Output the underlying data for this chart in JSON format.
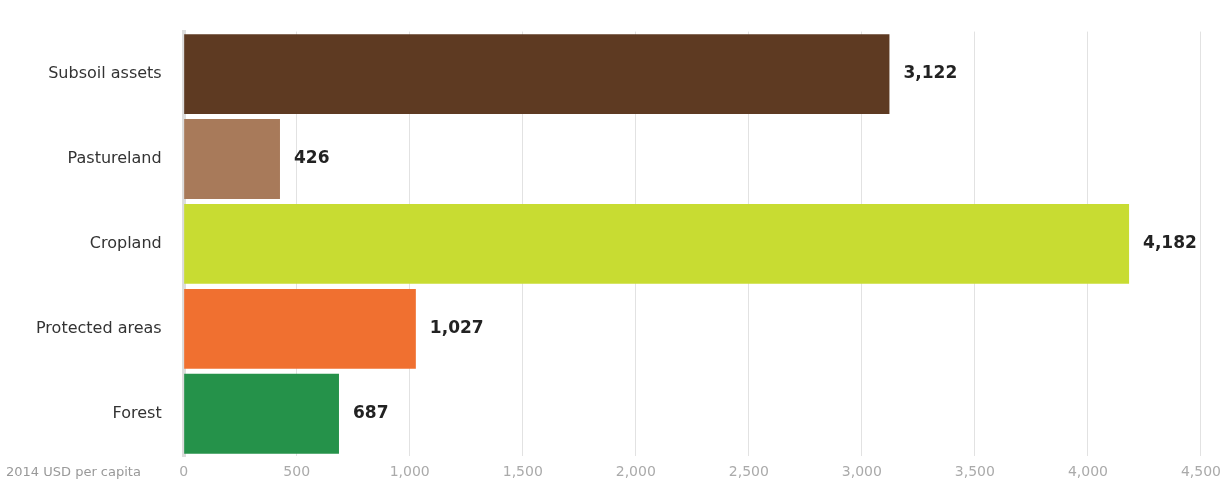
{
  "chart_data": {
    "type": "bar",
    "orientation": "horizontal",
    "xlabel": "2014 USD per capita",
    "categories": [
      "Subsoil assets",
      "Pastureland",
      "Cropland",
      "Protected areas",
      "Forest"
    ],
    "values": [
      3122,
      426,
      4182,
      1027,
      687
    ],
    "value_labels": [
      "3,122",
      "426",
      "4,182",
      "1,027",
      "687"
    ],
    "colors": [
      "#5e3a22",
      "#a87a5a",
      "#c8dc32",
      "#f07030",
      "#25924a"
    ],
    "xlim": [
      0,
      4500
    ],
    "xticks": [
      0,
      500,
      {
        "value": 1000,
        "label": "1,000"
      },
      {
        "value": 1500,
        "label": "1,500"
      },
      {
        "value": 2000,
        "label": "2,000"
      },
      {
        "value": 2500,
        "label": "2,500"
      },
      {
        "value": 3000,
        "label": "3,000"
      },
      {
        "value": 3500,
        "label": "3,500"
      },
      {
        "value": 4000,
        "label": "4,000"
      },
      {
        "value": 4500,
        "label": "4,500"
      }
    ],
    "grid": "x",
    "legend": false
  }
}
